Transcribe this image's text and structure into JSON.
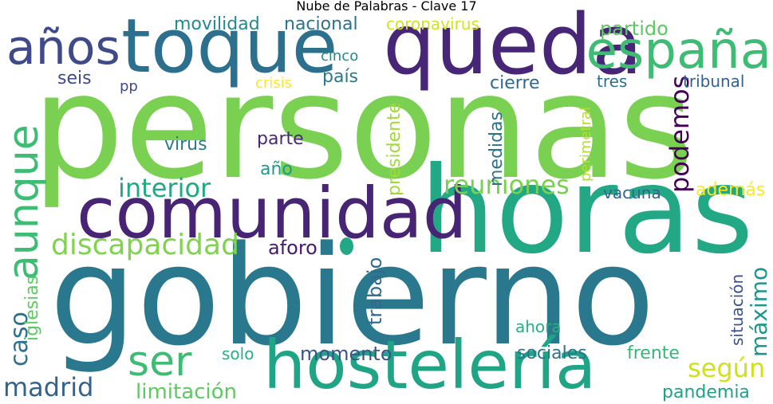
{
  "chart_data": {
    "type": "wordcloud",
    "title": "Nube de Palabras - Clave 17",
    "colormap": "viridis",
    "words": [
      {
        "text": "personas",
        "weight": 1.0,
        "color": "#7ad151"
      },
      {
        "text": "gobierno",
        "weight": 0.98,
        "color": "#2a788e"
      },
      {
        "text": "horas",
        "weight": 0.8,
        "color": "#22a884"
      },
      {
        "text": "queda",
        "weight": 0.62,
        "color": "#482677"
      },
      {
        "text": "toque",
        "weight": 0.57,
        "color": "#2d708e"
      },
      {
        "text": "comunidad",
        "weight": 0.55,
        "color": "#482475"
      },
      {
        "text": "hostelería",
        "weight": 0.52,
        "color": "#20a486"
      },
      {
        "text": "españa",
        "weight": 0.42,
        "color": "#3fbc73"
      },
      {
        "text": "años",
        "weight": 0.38,
        "color": "#3e4a89"
      },
      {
        "text": "aunque",
        "weight": 0.36,
        "color": "#3dbc74"
      },
      {
        "text": "ser",
        "weight": 0.33,
        "color": "#3fbc73"
      },
      {
        "text": "discapacidad",
        "weight": 0.22,
        "color": "#7fd34e"
      },
      {
        "text": "madrid",
        "weight": 0.2,
        "color": "#33638d"
      },
      {
        "text": "podemos",
        "weight": 0.19,
        "color": "#440154"
      },
      {
        "text": "reuniones",
        "weight": 0.19,
        "color": "#7ad151"
      },
      {
        "text": "interior",
        "weight": 0.19,
        "color": "#22a884"
      },
      {
        "text": "según",
        "weight": 0.19,
        "color": "#d0e11c"
      },
      {
        "text": "caso",
        "weight": 0.18,
        "color": "#2c728e"
      },
      {
        "text": "máximo",
        "weight": 0.17,
        "color": "#1f958b"
      },
      {
        "text": "limitación",
        "weight": 0.16,
        "color": "#5ec962"
      },
      {
        "text": "momento",
        "weight": 0.15,
        "color": "#3b528b"
      },
      {
        "text": "partido",
        "weight": 0.15,
        "color": "#5ec962"
      },
      {
        "text": "aforo",
        "weight": 0.15,
        "color": "#481a6c"
      },
      {
        "text": "trabajo",
        "weight": 0.15,
        "color": "#31688e"
      },
      {
        "text": "presidente",
        "weight": 0.14,
        "color": "#a0da39"
      },
      {
        "text": "iglesias",
        "weight": 0.14,
        "color": "#5ec962"
      },
      {
        "text": "medidas",
        "weight": 0.14,
        "color": "#2c728e"
      },
      {
        "text": "pandemia",
        "weight": 0.13,
        "color": "#1fa187"
      },
      {
        "text": "virus",
        "weight": 0.13,
        "color": "#2a788e"
      },
      {
        "text": "cierre",
        "weight": 0.13,
        "color": "#31688e"
      },
      {
        "text": "movilidad",
        "weight": 0.13,
        "color": "#23898e"
      },
      {
        "text": "nacional",
        "weight": 0.13,
        "color": "#2c728e"
      },
      {
        "text": "parte",
        "weight": 0.13,
        "color": "#482878"
      },
      {
        "text": "sociales",
        "weight": 0.13,
        "color": "#2c728e"
      },
      {
        "text": "frente",
        "weight": 0.12,
        "color": "#35b779"
      },
      {
        "text": "seis",
        "weight": 0.12,
        "color": "#3e4a89"
      },
      {
        "text": "además",
        "weight": 0.12,
        "color": "#fde725"
      },
      {
        "text": "tribunal",
        "weight": 0.11,
        "color": "#34618d"
      },
      {
        "text": "situación",
        "weight": 0.11,
        "color": "#3b528b"
      },
      {
        "text": "año",
        "weight": 0.11,
        "color": "#1f9a8a"
      },
      {
        "text": "país",
        "weight": 0.11,
        "color": "#2a788e"
      },
      {
        "text": "coronavirus",
        "weight": 0.11,
        "color": "#d2e21b"
      },
      {
        "text": "vacuna",
        "weight": 0.1,
        "color": "#33638d"
      },
      {
        "text": "perimetral",
        "weight": 0.1,
        "color": "#b5de2b"
      },
      {
        "text": "ahora",
        "weight": 0.1,
        "color": "#29af7f"
      },
      {
        "text": "solo",
        "weight": 0.1,
        "color": "#29af7f"
      },
      {
        "text": "tres",
        "weight": 0.1,
        "color": "#2d708e"
      },
      {
        "text": "cinco",
        "weight": 0.09,
        "color": "#23898e"
      },
      {
        "text": "crisis",
        "weight": 0.09,
        "color": "#fde725"
      },
      {
        "text": "pp",
        "weight": 0.09,
        "color": "#3e4a89"
      }
    ]
  }
}
